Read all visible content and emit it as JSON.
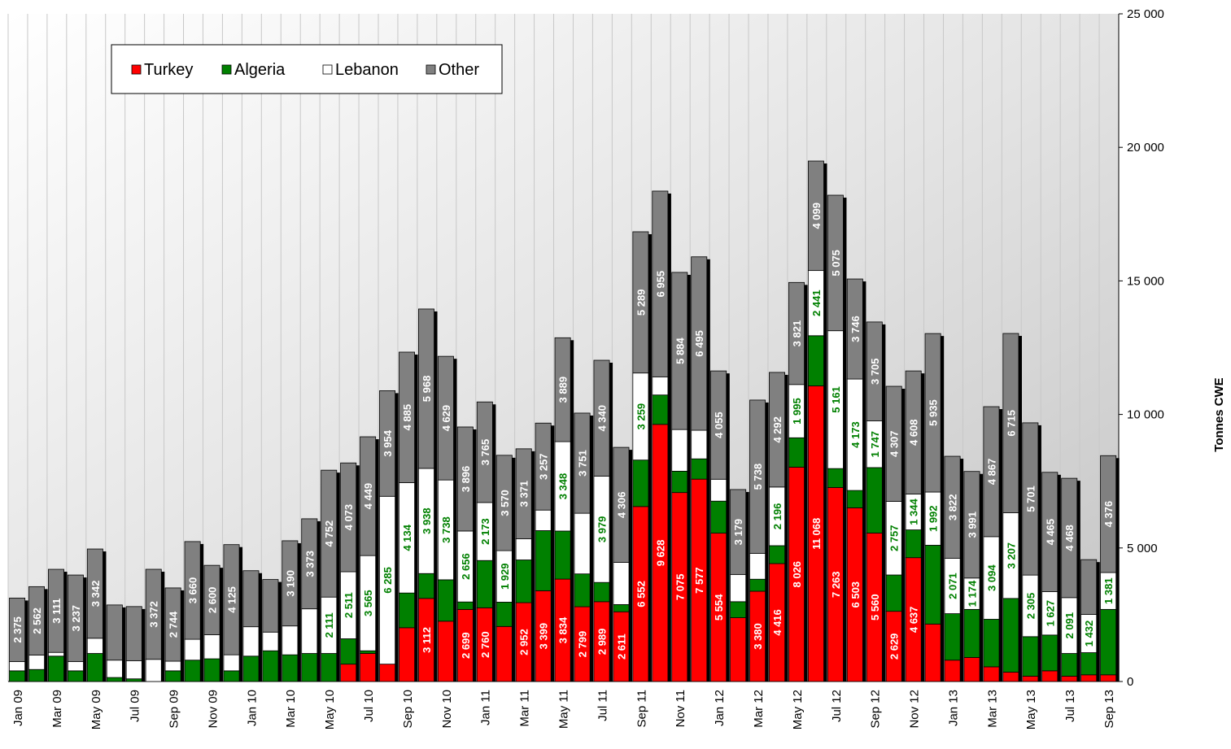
{
  "chart_data": {
    "type": "stacked-bar",
    "y_axis_label": "Tonnes CWE",
    "categories": [
      "Jan 09",
      null,
      "Mar 09",
      null,
      "May 09",
      null,
      "Jul 09",
      null,
      "Sep 09",
      null,
      "Nov 09",
      null,
      "Jan 10",
      null,
      "Mar 10",
      null,
      "May 10",
      null,
      "Jul 10",
      null,
      "Sep 10",
      null,
      "Nov 10",
      null,
      "Jan 11",
      null,
      "Mar 11",
      null,
      "May 11",
      null,
      "Jul 11",
      null,
      "Sep 11",
      null,
      "Nov 11",
      null,
      "Jan 12",
      null,
      "Mar 12",
      null,
      "May 12",
      null,
      "Jul 12",
      null,
      "Sep 12",
      null,
      "Nov 12",
      null,
      "Jan 13",
      null,
      "Mar 13",
      null,
      "May 13",
      null,
      "Jul 13",
      null,
      "Sep 13"
    ],
    "ylim": [
      0,
      25000
    ],
    "yticks": [
      0,
      {
        "value": 5000,
        "label": "5 000"
      },
      {
        "value": 10000,
        "label": "10 000"
      },
      {
        "value": 15000,
        "label": "15 000"
      },
      {
        "value": 20000,
        "label": "20 000"
      },
      {
        "value": 25000,
        "label": "25 000"
      }
    ],
    "series": [
      {
        "name": "Turkey",
        "color": "#ff0000",
        "label_color": "#ffffff",
        "values": [
          0,
          0,
          0,
          0,
          0,
          0,
          0,
          0,
          0,
          0,
          0,
          0,
          0,
          0,
          0,
          0,
          0,
          650,
          1050,
          650,
          2014,
          3112,
          2259,
          2699,
          2760,
          2061,
          2952,
          3399,
          3834,
          2799,
          2989,
          2611,
          6552,
          9628,
          7075,
          7577,
          5554,
          2389,
          3380,
          4416,
          8026,
          11068,
          7263,
          6503,
          5560,
          2629,
          4637,
          2152,
          800,
          900,
          550,
          350,
          200,
          400,
          200,
          250,
          250
        ],
        "value_labels": [
          null,
          null,
          null,
          null,
          null,
          null,
          null,
          null,
          null,
          null,
          null,
          null,
          null,
          null,
          null,
          null,
          null,
          null,
          null,
          null,
          null,
          "3 112",
          null,
          "2 699",
          "2 760",
          null,
          "2 952",
          "3 399",
          "3 834",
          "2 799",
          "2 989",
          "2 611",
          "6 552",
          "9 628",
          "7 075",
          "7 577",
          "5 554",
          null,
          "3 380",
          "4 416",
          "8 026",
          "11 068",
          "7 263",
          "6 503",
          "5 560",
          "2 629",
          "4 637",
          null,
          null,
          null,
          null,
          null,
          null,
          null,
          null,
          null,
          null
        ]
      },
      {
        "name": "Algeria",
        "color": "#008000",
        "label_color": "#ffffff",
        "values": [
          400,
          450,
          950,
          400,
          1050,
          150,
          100,
          0,
          400,
          800,
          850,
          400,
          950,
          1150,
          1000,
          1050,
          1050,
          950,
          100,
          0,
          1300,
          930,
          1550,
          280,
          1770,
          910,
          1600,
          2250,
          1800,
          1230,
          720,
          270,
          1740,
          1100,
          800,
          760,
          1200,
          600,
          450,
          670,
          1100,
          1880,
          710,
          650,
          2450,
          1360,
          1040,
          2950,
          1740,
          1800,
          1780,
          2760,
          1480,
          1340,
          850,
          830,
          2450
        ]
      },
      {
        "name": "Lebanon",
        "color": "#ffffff",
        "label_color": "#008000",
        "values": [
          350,
          540,
          140,
          350,
          570,
          650,
          680,
          830,
          360,
          780,
          900,
          600,
          1100,
          700,
          1080,
          1670,
          2111,
          2511,
          3565,
          6285,
          4134,
          3938,
          3738,
          2656,
          2173,
          1929,
          790,
          770,
          3348,
          2270,
          3979,
          1580,
          3259,
          680,
          1560,
          1070,
          820,
          1020,
          970,
          2196,
          1995,
          2441,
          5161,
          4173,
          1747,
          2757,
          1344,
          1992,
          2071,
          1174,
          3094,
          3207,
          2305,
          1627,
          2091,
          1432,
          1381
        ],
        "value_labels": [
          null,
          null,
          null,
          null,
          null,
          null,
          null,
          null,
          null,
          null,
          null,
          null,
          null,
          null,
          null,
          null,
          "2 111",
          "2 511",
          "3 565",
          "6 285",
          "4 134",
          "3 938",
          "3 738",
          "2 656",
          "2 173",
          "1 929",
          null,
          null,
          "3 348",
          null,
          "3 979",
          null,
          "3 259",
          null,
          null,
          null,
          null,
          null,
          null,
          "2 196",
          "1 995",
          "2 441",
          "5 161",
          "4 173",
          "1 747",
          "2 757",
          "1 344",
          "1 992",
          "2 071",
          "1 174",
          "3 094",
          "3 207",
          "2 305",
          "1 627",
          "2 091",
          "1 432",
          "1 381"
        ]
      },
      {
        "name": "Other",
        "color": "#808080",
        "label_color": "#ffffff",
        "values": [
          2375,
          2562,
          3111,
          3237,
          3342,
          2066,
          2026,
          3372,
          2744,
          3660,
          2600,
          4125,
          2099,
          1969,
          3190,
          3373,
          4752,
          4073,
          4449,
          3954,
          4885,
          5968,
          4629,
          3896,
          3765,
          3570,
          3371,
          3257,
          3889,
          3751,
          4340,
          4306,
          5289,
          6955,
          5884,
          6495,
          4055,
          3179,
          5738,
          4292,
          3821,
          4099,
          5075,
          3746,
          3705,
          4307,
          4608,
          5935,
          3822,
          3991,
          4867,
          6715,
          5701,
          4465,
          4468,
          2051,
          4376
        ],
        "value_labels": [
          "2 375",
          "2 562",
          "3 111",
          "3 237",
          "3 342",
          null,
          null,
          "3 372",
          "2 744",
          "3 660",
          "2 600",
          "4 125",
          null,
          null,
          "3 190",
          "3 373",
          "4 752",
          "4 073",
          "4 449",
          "3 954",
          "4 885",
          "5 968",
          "4 629",
          "3 896",
          "3 765",
          "3 570",
          "3 371",
          "3 257",
          "3 889",
          "3 751",
          "4 340",
          "4 306",
          "5 289",
          "6 955",
          "5 884",
          "6 495",
          "4 055",
          "3 179",
          "5 738",
          "4 292",
          "3 821",
          "4 099",
          "5 075",
          "3 746",
          "3 705",
          "4 307",
          "4 608",
          "5 935",
          "3 822",
          "3 991",
          "4 867",
          "6 715",
          "5 701",
          "4 465",
          "4 468",
          null,
          "4 376"
        ]
      }
    ],
    "legend": "upper left"
  }
}
